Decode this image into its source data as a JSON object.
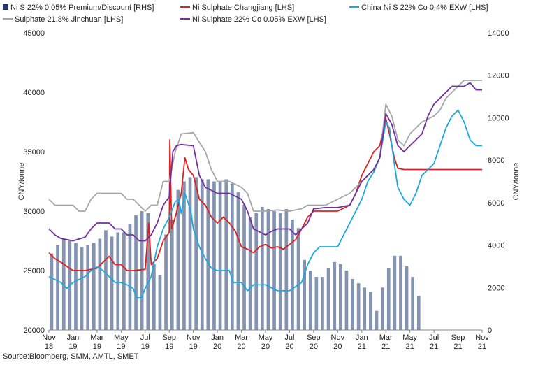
{
  "chart_data": {
    "type": "line",
    "source": "Source:Bloomberg, SMM, AMTL, SMET",
    "ylabel_left": "CNY/tonne",
    "ylabel_right": "CNY/tonne",
    "ylim_left": [
      20000,
      45000
    ],
    "ylim_right": [
      0,
      14000
    ],
    "yticks_left": [
      20000,
      25000,
      30000,
      35000,
      40000,
      45000
    ],
    "yticks_right": [
      0,
      2000,
      4000,
      6000,
      8000,
      10000,
      12000,
      14000
    ],
    "xlim": [
      0,
      36
    ],
    "x_ticks": [
      {
        "pos": 0,
        "line1": "Nov",
        "line2": "18"
      },
      {
        "pos": 2,
        "line1": "Jan",
        "line2": "19"
      },
      {
        "pos": 4,
        "line1": "Mar",
        "line2": "19"
      },
      {
        "pos": 6,
        "line1": "May",
        "line2": "19"
      },
      {
        "pos": 8,
        "line1": "Jul",
        "line2": "19"
      },
      {
        "pos": 10,
        "line1": "Sep",
        "line2": "19"
      },
      {
        "pos": 12,
        "line1": "Nov",
        "line2": "19"
      },
      {
        "pos": 14,
        "line1": "Jan",
        "line2": "20"
      },
      {
        "pos": 16,
        "line1": "Mar",
        "line2": "20"
      },
      {
        "pos": 18,
        "line1": "May",
        "line2": "20"
      },
      {
        "pos": 20,
        "line1": "Jul",
        "line2": "20"
      },
      {
        "pos": 22,
        "line1": "Sep",
        "line2": "20"
      },
      {
        "pos": 24,
        "line1": "Nov",
        "line2": "20"
      },
      {
        "pos": 26,
        "line1": "Jan",
        "line2": "21"
      },
      {
        "pos": 28,
        "line1": "Mar",
        "line2": "21"
      },
      {
        "pos": 30,
        "line1": "May",
        "line2": "21"
      },
      {
        "pos": 32,
        "line1": "Jul",
        "line2": "21"
      },
      {
        "pos": 34,
        "line1": "Sep",
        "line2": "21"
      },
      {
        "pos": 36,
        "line1": "Nov",
        "line2": "21"
      }
    ],
    "legend": [
      {
        "name": "Ni S 22% 0.05% Premium/Discount [RHS]",
        "color": "#1f3864",
        "kind": "box"
      },
      {
        "name": "Ni Sulphate Changjiang [LHS]",
        "color": "#e02020",
        "kind": "line"
      },
      {
        "name": "China Ni S 22% Co 0.4% EXW [LHS]",
        "color": "#1ca8dd",
        "kind": "line"
      },
      {
        "name": "Sulphate 21.8% Jinchuan [LHS]",
        "color": "#a6a6a6",
        "kind": "line"
      },
      {
        "name": "Ni Sulphate 22% Co 0.05% EXW [LHS]",
        "color": "#7030a0",
        "kind": "line"
      }
    ],
    "bars": {
      "name": "Ni S 22% 0.05% Premium/Discount [RHS]",
      "axis": "right",
      "color": "#8393b0",
      "x": [
        0.0,
        0.5,
        1.0,
        1.5,
        2.0,
        2.5,
        3.0,
        3.5,
        4.0,
        4.5,
        5.0,
        5.5,
        6.0,
        6.5,
        7.0,
        7.5,
        8.0,
        8.5,
        9.0,
        9.5,
        10.0,
        10.5,
        11.0,
        11.5,
        12.0,
        12.5,
        13.0,
        13.5,
        14.0,
        14.5,
        15.0,
        15.5,
        16.0,
        16.5,
        17.0,
        17.5,
        18.0,
        18.5,
        19.0,
        19.5,
        20.0,
        20.5,
        21.0,
        21.5,
        22.0,
        22.5,
        23.0,
        23.5,
        24.0,
        24.5,
        25.0,
        25.5,
        26.0,
        26.5,
        27.0,
        27.5,
        28.0,
        28.5,
        29.0,
        29.5,
        30.0,
        30.5
      ],
      "values": [
        3600,
        4000,
        4300,
        4200,
        4100,
        3900,
        4000,
        4100,
        4300,
        4700,
        4400,
        4600,
        4600,
        5000,
        5400,
        5600,
        5500,
        3100,
        2600,
        4500,
        5200,
        6600,
        7000,
        7200,
        7200,
        7100,
        7100,
        7000,
        7000,
        7100,
        6900,
        6500,
        5900,
        5300,
        5500,
        5800,
        5700,
        5600,
        5500,
        5700,
        5200,
        4800,
        3300,
        2800,
        2500,
        2500,
        2900,
        3200,
        3100,
        2800,
        2400,
        2200,
        2000,
        1800,
        900,
        2000,
        2900,
        3500,
        3500,
        3000,
        2500,
        1600
      ]
    },
    "series": [
      {
        "name": "Ni Sulphate Changjiang [LHS]",
        "axis": "left",
        "color": "#e02020",
        "points": [
          [
            0,
            26500
          ],
          [
            0.5,
            26000
          ],
          [
            1,
            25700
          ],
          [
            2,
            25000
          ],
          [
            3,
            25000
          ],
          [
            4,
            25200
          ],
          [
            5,
            26200
          ],
          [
            5.5,
            25500
          ],
          [
            6,
            25500
          ],
          [
            6.5,
            25000
          ],
          [
            7,
            25000
          ],
          [
            8,
            25100
          ],
          [
            8.3,
            29000
          ],
          [
            8.5,
            25500
          ],
          [
            9,
            26000
          ],
          [
            9.5,
            27500
          ],
          [
            10,
            28200
          ],
          [
            10.05,
            36000
          ],
          [
            10.2,
            28500
          ],
          [
            10.5,
            29500
          ],
          [
            11,
            31500
          ],
          [
            11.3,
            34500
          ],
          [
            11.6,
            33500
          ],
          [
            12,
            33000
          ],
          [
            12.5,
            31000
          ],
          [
            13,
            30500
          ],
          [
            13.5,
            29500
          ],
          [
            14,
            29000
          ],
          [
            14.5,
            29500
          ],
          [
            15,
            29000
          ],
          [
            15.5,
            28300
          ],
          [
            16,
            27000
          ],
          [
            16.5,
            26800
          ],
          [
            17,
            26500
          ],
          [
            17.5,
            27000
          ],
          [
            18,
            27200
          ],
          [
            18.5,
            26900
          ],
          [
            19,
            27000
          ],
          [
            19.5,
            26800
          ],
          [
            20,
            27200
          ],
          [
            20.5,
            27600
          ],
          [
            21,
            28500
          ],
          [
            21.5,
            29500
          ],
          [
            22,
            30000
          ],
          [
            23,
            30000
          ],
          [
            24,
            30000
          ],
          [
            25,
            30500
          ],
          [
            25.5,
            31500
          ],
          [
            26,
            33000
          ],
          [
            26.5,
            34000
          ],
          [
            27,
            35000
          ],
          [
            27.5,
            35500
          ],
          [
            28,
            37800
          ],
          [
            28.3,
            36500
          ],
          [
            28.7,
            34500
          ],
          [
            29,
            33600
          ],
          [
            29.5,
            33500
          ],
          [
            30,
            33500
          ],
          [
            33,
            33500
          ],
          [
            36,
            33500
          ]
        ]
      },
      {
        "name": "China Ni S 22% Co 0.4% EXW [LHS]",
        "axis": "left",
        "color": "#1ca8dd",
        "points": [
          [
            0,
            24500
          ],
          [
            1,
            24000
          ],
          [
            1.5,
            23500
          ],
          [
            2,
            24000
          ],
          [
            3,
            24500
          ],
          [
            3.5,
            25000
          ],
          [
            4,
            25300
          ],
          [
            4.5,
            25000
          ],
          [
            5,
            24500
          ],
          [
            5.5,
            24000
          ],
          [
            6,
            24000
          ],
          [
            6.5,
            23800
          ],
          [
            7,
            23500
          ],
          [
            7.3,
            22700
          ],
          [
            7.7,
            22700
          ],
          [
            8,
            23500
          ],
          [
            8.5,
            24500
          ],
          [
            9,
            27000
          ],
          [
            9.5,
            28500
          ],
          [
            10,
            29500
          ],
          [
            10.5,
            30800
          ],
          [
            10.8,
            31000
          ],
          [
            11,
            29800
          ],
          [
            11.3,
            31500
          ],
          [
            11.8,
            30000
          ],
          [
            12,
            28500
          ],
          [
            12.5,
            27000
          ],
          [
            13,
            26000
          ],
          [
            13.5,
            25200
          ],
          [
            14,
            25000
          ],
          [
            15,
            25000
          ],
          [
            15.3,
            24000
          ],
          [
            16,
            24000
          ],
          [
            16.5,
            23300
          ],
          [
            17,
            23800
          ],
          [
            18,
            23800
          ],
          [
            19,
            23300
          ],
          [
            20,
            23300
          ],
          [
            21,
            24000
          ],
          [
            21.5,
            25500
          ],
          [
            22,
            26500
          ],
          [
            22.5,
            27000
          ],
          [
            23,
            27000
          ],
          [
            24,
            27000
          ],
          [
            24.5,
            28000
          ],
          [
            25,
            29000
          ],
          [
            25.5,
            30000
          ],
          [
            26,
            31000
          ],
          [
            26.5,
            32500
          ],
          [
            27,
            33300
          ],
          [
            27.5,
            34500
          ],
          [
            28,
            37500
          ],
          [
            28.3,
            37000
          ],
          [
            28.7,
            34000
          ],
          [
            29,
            32000
          ],
          [
            29.5,
            31000
          ],
          [
            30,
            30500
          ],
          [
            30.5,
            31500
          ],
          [
            31,
            33000
          ],
          [
            31.5,
            33500
          ],
          [
            32,
            34000
          ],
          [
            32.5,
            35500
          ],
          [
            33,
            37000
          ],
          [
            33.5,
            38000
          ],
          [
            34,
            38500
          ],
          [
            34.5,
            37500
          ],
          [
            35,
            36000
          ],
          [
            35.5,
            35500
          ],
          [
            36,
            35500
          ]
        ]
      },
      {
        "name": "Sulphate 21.8% Jinchuan [LHS]",
        "axis": "left",
        "color": "#a6a6a6",
        "points": [
          [
            0,
            31000
          ],
          [
            0.5,
            30500
          ],
          [
            2,
            30500
          ],
          [
            2.5,
            30000
          ],
          [
            3,
            30000
          ],
          [
            3.5,
            31000
          ],
          [
            4,
            31500
          ],
          [
            5,
            31500
          ],
          [
            6,
            31500
          ],
          [
            6.5,
            31000
          ],
          [
            7,
            31000
          ],
          [
            8,
            30000
          ],
          [
            8.5,
            30500
          ],
          [
            9,
            30500
          ],
          [
            9.5,
            32500
          ],
          [
            10,
            32500
          ],
          [
            10.5,
            35000
          ],
          [
            11,
            36500
          ],
          [
            12,
            36600
          ],
          [
            13,
            35000
          ],
          [
            13.5,
            33500
          ],
          [
            14,
            32500
          ],
          [
            15,
            32500
          ],
          [
            16,
            32000
          ],
          [
            16.5,
            31500
          ],
          [
            17,
            30000
          ],
          [
            18,
            30000
          ],
          [
            19,
            30100
          ],
          [
            20,
            30000
          ],
          [
            21,
            30200
          ],
          [
            21.5,
            30500
          ],
          [
            22,
            30500
          ],
          [
            23,
            30500
          ],
          [
            24,
            31000
          ],
          [
            25,
            31500
          ],
          [
            26,
            32500
          ],
          [
            27,
            33500
          ],
          [
            27.5,
            34500
          ],
          [
            28,
            39000
          ],
          [
            28.5,
            38000
          ],
          [
            29,
            36000
          ],
          [
            29.5,
            35500
          ],
          [
            30,
            36500
          ],
          [
            31,
            37500
          ],
          [
            32,
            38000
          ],
          [
            32.5,
            38500
          ],
          [
            33,
            39500
          ],
          [
            33.5,
            40000
          ],
          [
            34,
            40500
          ],
          [
            34.5,
            41000
          ],
          [
            35,
            41000
          ],
          [
            36,
            41000
          ]
        ]
      },
      {
        "name": "Ni Sulphate 22% Co 0.05% EXW [LHS]",
        "axis": "left",
        "color": "#7030a0",
        "points": [
          [
            0,
            28500
          ],
          [
            0.5,
            28000
          ],
          [
            1,
            27700
          ],
          [
            2,
            27500
          ],
          [
            3,
            27800
          ],
          [
            3.5,
            28500
          ],
          [
            4,
            29000
          ],
          [
            5,
            29000
          ],
          [
            5.5,
            28500
          ],
          [
            6,
            28500
          ],
          [
            6.5,
            28000
          ],
          [
            7,
            28000
          ],
          [
            7.5,
            27500
          ],
          [
            8,
            27500
          ],
          [
            8.5,
            28000
          ],
          [
            9,
            29000
          ],
          [
            9.5,
            30500
          ],
          [
            10,
            31200
          ],
          [
            10.3,
            35000
          ],
          [
            10.6,
            35500
          ],
          [
            11,
            35600
          ],
          [
            12,
            35500
          ],
          [
            12.5,
            33000
          ],
          [
            13,
            32000
          ],
          [
            14,
            31500
          ],
          [
            15,
            31500
          ],
          [
            16,
            31000
          ],
          [
            16.5,
            30000
          ],
          [
            17,
            28500
          ],
          [
            18,
            28000
          ],
          [
            18.5,
            28300
          ],
          [
            19,
            28500
          ],
          [
            20,
            28500
          ],
          [
            20.5,
            28000
          ],
          [
            21,
            28500
          ],
          [
            21.5,
            29000
          ],
          [
            22,
            30200
          ],
          [
            23,
            30300
          ],
          [
            24,
            30300
          ],
          [
            25,
            30500
          ],
          [
            25.5,
            31500
          ],
          [
            26,
            32500
          ],
          [
            27,
            33500
          ],
          [
            27.5,
            34500
          ],
          [
            28,
            38200
          ],
          [
            28.5,
            37300
          ],
          [
            29,
            35500
          ],
          [
            29.5,
            35000
          ],
          [
            30,
            35500
          ],
          [
            31,
            36500
          ],
          [
            31.5,
            38000
          ],
          [
            32,
            39000
          ],
          [
            32.5,
            39500
          ],
          [
            33,
            40000
          ],
          [
            33.5,
            40500
          ],
          [
            34,
            40500
          ],
          [
            34.5,
            40500
          ],
          [
            35,
            40800
          ],
          [
            35.5,
            40200
          ],
          [
            36,
            40200
          ]
        ]
      }
    ]
  }
}
